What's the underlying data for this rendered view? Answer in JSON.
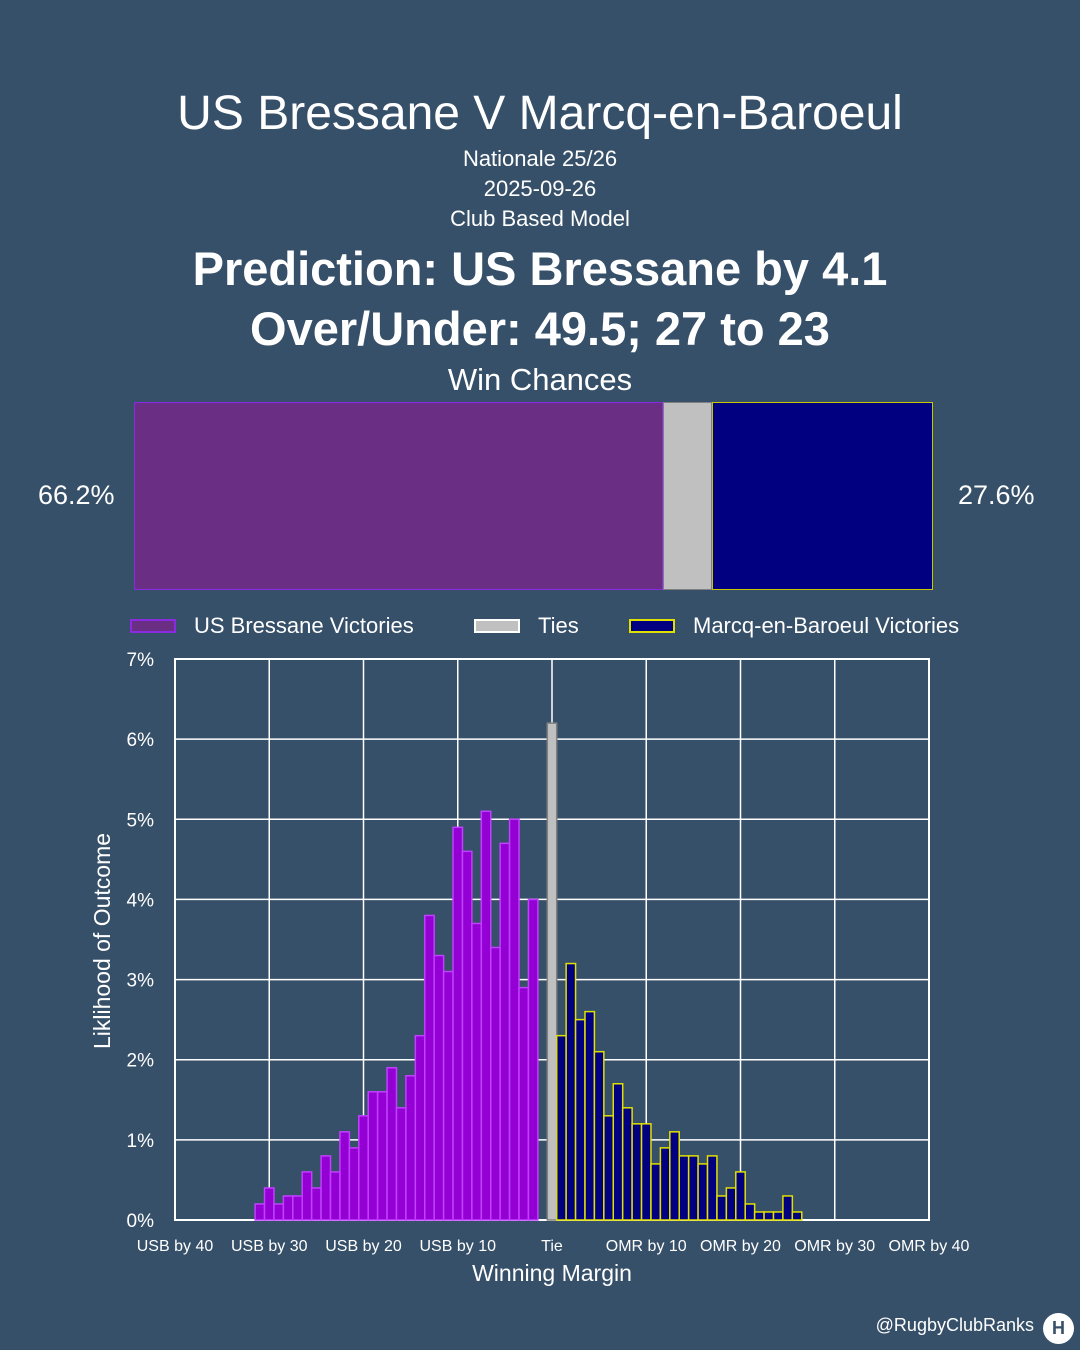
{
  "header": {
    "title": "US Bressane V Marcq-en-Baroeul",
    "league": "Nationale 25/26",
    "date": "2025-09-26",
    "model": "Club Based Model",
    "prediction": "Prediction: US Bressane by 4.1",
    "over_under": "Over/Under: 49.5; 27 to 23"
  },
  "win_chances": {
    "title": "Win Chances",
    "home_pct_label": "66.2%",
    "away_pct_label": "27.6%",
    "home": 66.2,
    "tie": 6.2,
    "away": 27.6
  },
  "legend": {
    "home": "US Bressane Victories",
    "tie": "Ties",
    "away": "Marcq-en-Baroeul Victories"
  },
  "colors": {
    "background": "#375069",
    "home_fill": "#6a2f85",
    "home_hist_fill": "#9400d3",
    "home_edge": "#c040ff",
    "tie_fill": "#c0c0c0",
    "away_fill": "#000080",
    "away_edge": "#e0e000"
  },
  "chart_data": {
    "type": "bar",
    "xlabel": "Winning Margin",
    "ylabel": "Liklihood of Outcome",
    "xlim": [
      -40,
      40
    ],
    "ylim": [
      0,
      7
    ],
    "x_ticks": [
      -40,
      -30,
      -20,
      -10,
      0,
      10,
      20,
      30,
      40
    ],
    "x_tick_labels": [
      "USB by 40",
      "USB by 30",
      "USB by 20",
      "USB by 10",
      "Tie",
      "OMR by 10",
      "OMR by 20",
      "OMR by 30",
      "OMR by 40"
    ],
    "y_ticks": [
      0,
      1,
      2,
      3,
      4,
      5,
      6,
      7
    ],
    "y_tick_labels": [
      "0%",
      "1%",
      "2%",
      "3%",
      "4%",
      "5%",
      "6%",
      "7%"
    ],
    "grid": true,
    "series": [
      {
        "name": "US Bressane Victories",
        "x": [
          -31,
          -30,
          -29,
          -28,
          -27,
          -26,
          -25,
          -24,
          -23,
          -22,
          -21,
          -20,
          -19,
          -18,
          -17,
          -16,
          -15,
          -14,
          -13,
          -12,
          -11,
          -10,
          -9,
          -8,
          -7,
          -6,
          -5,
          -4,
          -3,
          -2,
          -1
        ],
        "values": [
          0.2,
          0.4,
          0.2,
          0.3,
          0.3,
          0.6,
          0.4,
          0.8,
          0.6,
          1.1,
          0.9,
          1.3,
          1.6,
          1.6,
          1.9,
          1.4,
          1.8,
          2.3,
          3.8,
          3.3,
          3.1,
          4.9,
          4.6,
          3.7,
          5.1,
          3.4,
          4.7,
          5.0,
          2.9,
          4.0,
          0.0
        ]
      },
      {
        "name": "Ties",
        "x": [
          0
        ],
        "values": [
          6.2
        ]
      },
      {
        "name": "Marcq-en-Baroeul Victories",
        "x": [
          1,
          2,
          3,
          4,
          5,
          6,
          7,
          8,
          9,
          10,
          11,
          12,
          13,
          14,
          15,
          16,
          17,
          18,
          19,
          20,
          21,
          22,
          23,
          24,
          25,
          26
        ],
        "values": [
          2.3,
          3.2,
          2.5,
          2.6,
          2.1,
          1.3,
          1.7,
          1.4,
          1.2,
          1.2,
          0.7,
          0.9,
          1.1,
          0.8,
          0.8,
          0.7,
          0.8,
          0.3,
          0.4,
          0.6,
          0.2,
          0.1,
          0.1,
          0.1,
          0.3,
          0.1
        ]
      }
    ]
  },
  "footer": {
    "handle": "@RugbyClubRanks"
  }
}
